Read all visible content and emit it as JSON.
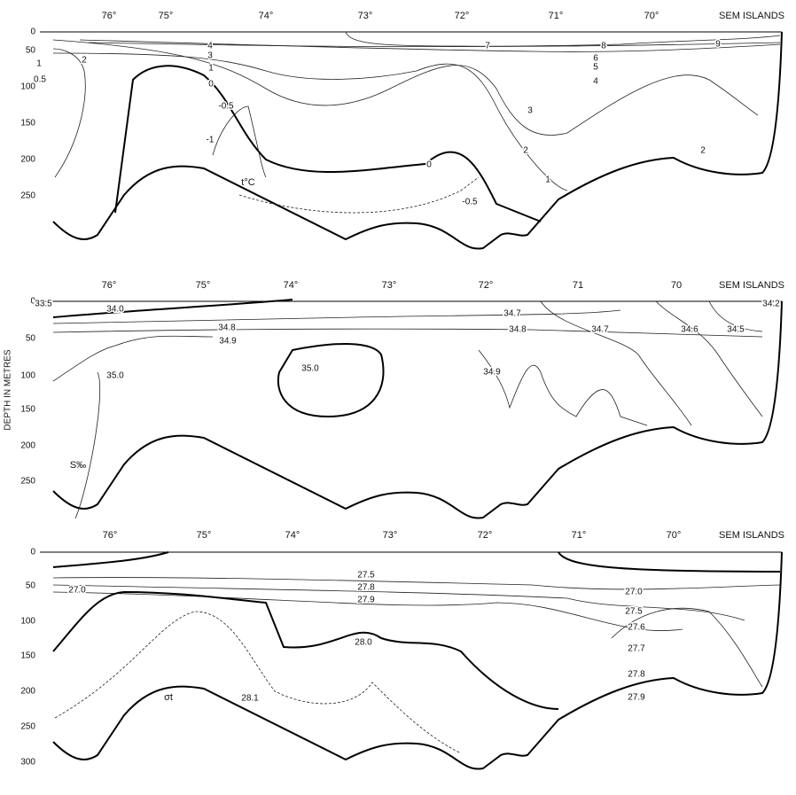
{
  "y_axis_title": "DEPTH IN METRES",
  "panels": [
    {
      "label": "t°C",
      "x_ticks": [
        "76°",
        "75°",
        "74°",
        "73°",
        "72°",
        "71°",
        "70°",
        "SEM ISLANDS"
      ],
      "y_ticks": [
        "0",
        "50",
        "100",
        "150",
        "200",
        "250"
      ],
      "contour_labels": [
        "0.5",
        "1",
        "2",
        "4",
        "3",
        "1",
        "0",
        "-0.5",
        "-1",
        "7",
        "6",
        "5",
        "4",
        "8",
        "9",
        "3",
        "2",
        "1",
        "0",
        "-0.5",
        "2"
      ]
    },
    {
      "label": "S‰",
      "x_ticks": [
        "76°",
        "75°",
        "74°",
        "73°",
        "72°",
        "71",
        "70",
        "SEM ISLANDS"
      ],
      "y_ticks": [
        "0",
        "50",
        "100",
        "150",
        "200",
        "250"
      ],
      "contour_labels": [
        "33.5",
        "34.0",
        "34.8",
        "34.9",
        "35.0",
        "35.0",
        "34.7",
        "34.8",
        "34.7",
        "34.6",
        "34.5",
        "34.2",
        "34.9"
      ]
    },
    {
      "label": "σt",
      "x_ticks": [
        "76°",
        "75°",
        "74°",
        "73°",
        "72°",
        "71°",
        "70°",
        "SEM ISLANDS"
      ],
      "y_ticks": [
        "0",
        "50",
        "100",
        "150",
        "200",
        "250",
        "300"
      ],
      "contour_labels": [
        "27.0",
        "27.5",
        "27.8",
        "27.9",
        "28.0",
        "28.1",
        "27.0",
        "27.5",
        "27.6",
        "27.7",
        "27.8",
        "27.9"
      ]
    }
  ]
}
